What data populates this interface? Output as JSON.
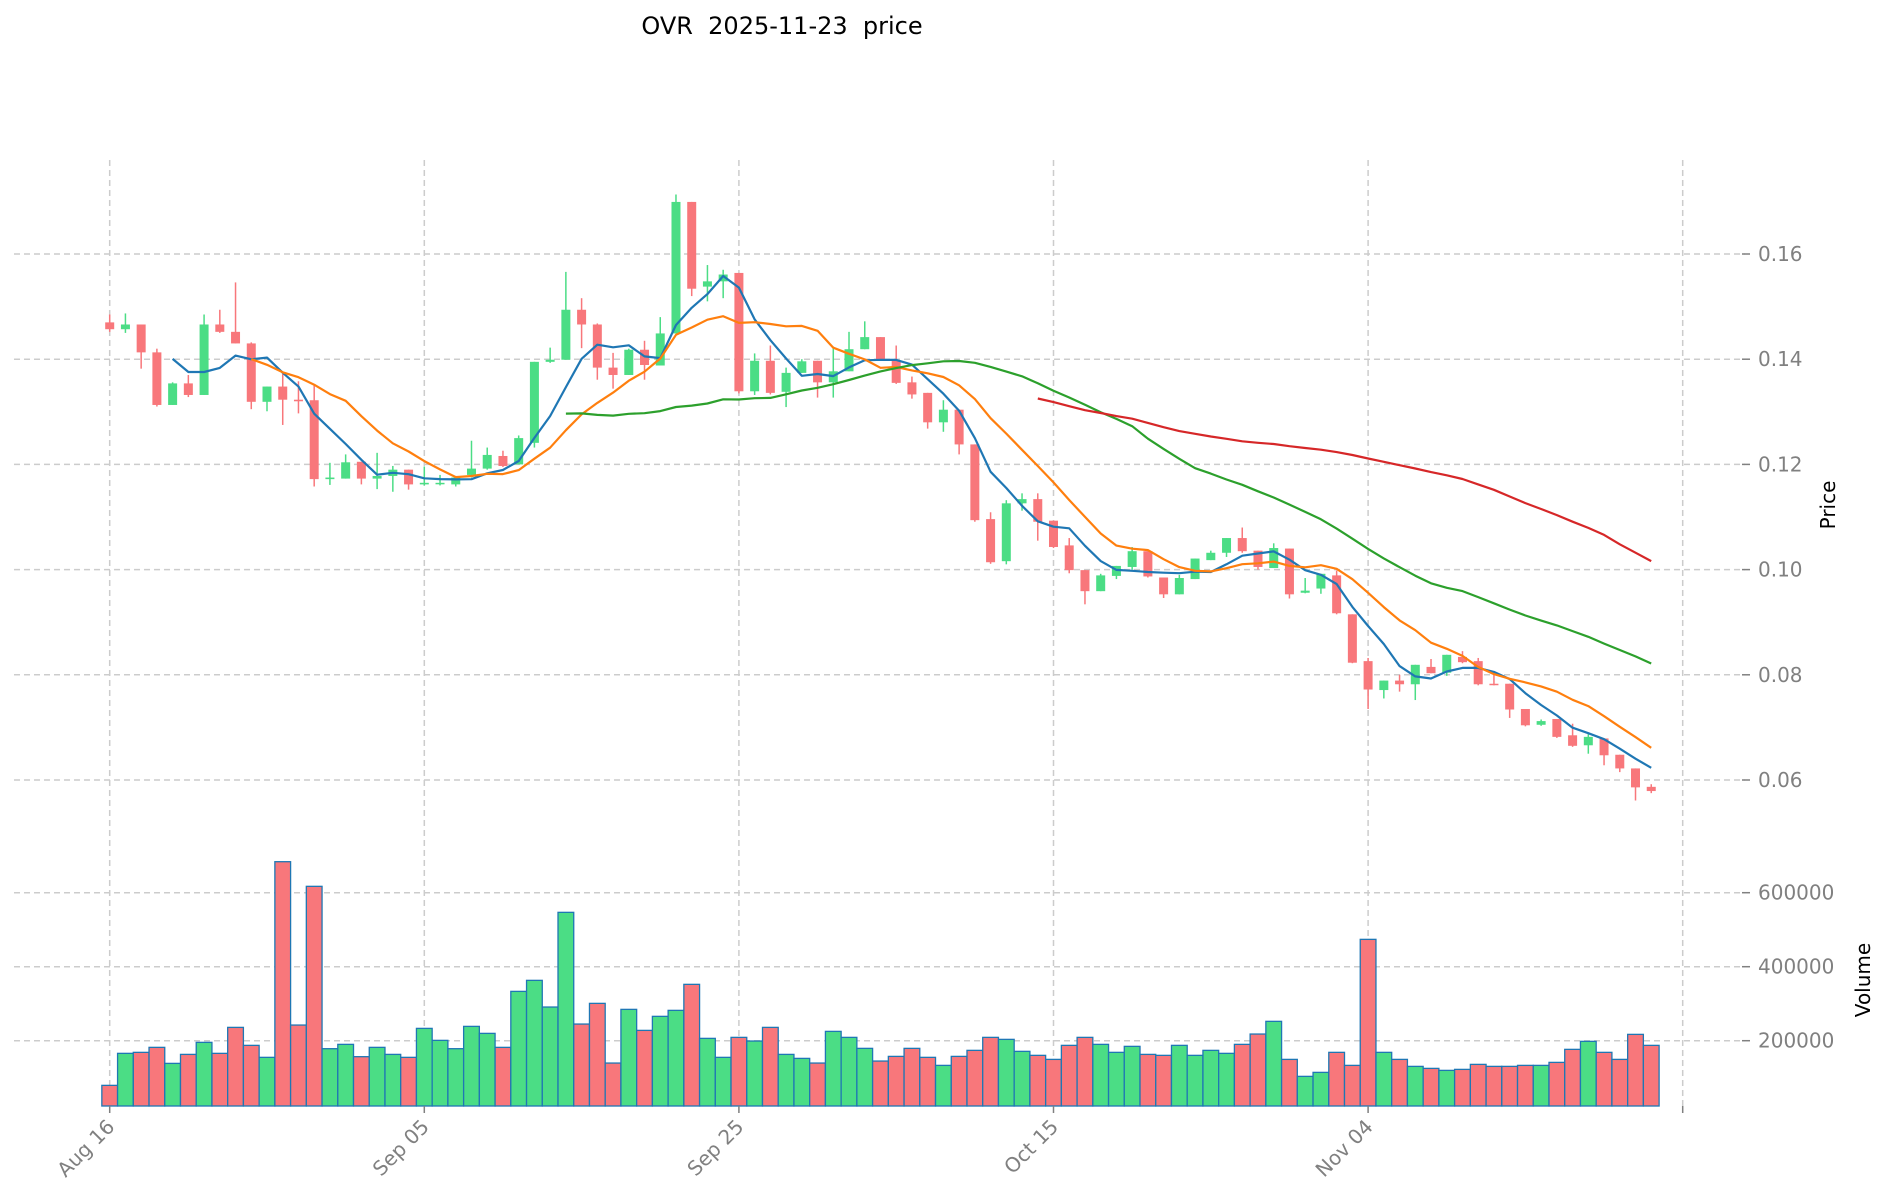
{
  "chart_data": {
    "type": "candlestick",
    "title": "OVR  2025-11-23  price",
    "symbol": "OVR",
    "x_start": "2025-08-16",
    "x_interval": "1D",
    "xlabel": "",
    "ylabel": "Price",
    "volume_label": "Volume",
    "ylim": [
      0.0476,
      0.1779
    ],
    "volume_ylim": [
      24300,
      688000
    ],
    "grid": true,
    "x_ticks": [
      {
        "day": 0,
        "label": "Aug 16"
      },
      {
        "day": 20,
        "label": "Sep 05"
      },
      {
        "day": 40,
        "label": "Sep 25"
      },
      {
        "day": 60,
        "label": "Oct 15"
      },
      {
        "day": 80,
        "label": "Nov 04"
      },
      {
        "day": 100,
        "label": ""
      }
    ],
    "y_ticks": [
      "0.06",
      "0.08",
      "0.10",
      "0.12",
      "0.14",
      "0.16"
    ],
    "volume_ticks": [
      "200000",
      "400000",
      "600000"
    ],
    "colors": {
      "up": "#4bdd85",
      "down": "#f8777b",
      "volume_edge": "#1f77b4",
      "grid": "#cccccc"
    },
    "moving_averages": [
      {
        "window": 5,
        "color": "#1f77b4"
      },
      {
        "window": 10,
        "color": "#ff7f0e"
      },
      {
        "window": 30,
        "color": "#2ca02c"
      },
      {
        "window": 60,
        "color": "#d62728"
      }
    ],
    "ohlc_columns": [
      "open",
      "high",
      "low",
      "close"
    ],
    "ohlc": [
      [
        0.147,
        0.1485,
        0.1452,
        0.1457
      ],
      [
        0.1457,
        0.1487,
        0.145,
        0.1466
      ],
      [
        0.1466,
        0.1466,
        0.1382,
        0.1413
      ],
      [
        0.1413,
        0.142,
        0.131,
        0.1313
      ],
      [
        0.1313,
        0.1356,
        0.1313,
        0.1354
      ],
      [
        0.1354,
        0.137,
        0.1328,
        0.1332
      ],
      [
        0.1332,
        0.1485,
        0.1332,
        0.1466
      ],
      [
        0.1466,
        0.1494,
        0.145,
        0.1452
      ],
      [
        0.1452,
        0.1546,
        0.143,
        0.143
      ],
      [
        0.143,
        0.1432,
        0.1305,
        0.1319
      ],
      [
        0.1319,
        0.1348,
        0.1301,
        0.1348
      ],
      [
        0.1348,
        0.1372,
        0.1275,
        0.1323
      ],
      [
        0.1323,
        0.1358,
        0.1297,
        0.132
      ],
      [
        0.1322,
        0.135,
        0.1158,
        0.1172
      ],
      [
        0.1172,
        0.1203,
        0.1161,
        0.1175
      ],
      [
        0.1173,
        0.1219,
        0.1173,
        0.1204
      ],
      [
        0.1205,
        0.1205,
        0.1162,
        0.1173
      ],
      [
        0.1173,
        0.1222,
        0.1153,
        0.1178
      ],
      [
        0.1178,
        0.1197,
        0.1148,
        0.119
      ],
      [
        0.119,
        0.119,
        0.1152,
        0.1162
      ],
      [
        0.1162,
        0.1196,
        0.116,
        0.1165
      ],
      [
        0.1163,
        0.118,
        0.116,
        0.1165
      ],
      [
        0.1162,
        0.1178,
        0.1158,
        0.1175
      ],
      [
        0.118,
        0.1245,
        0.1175,
        0.1192
      ],
      [
        0.1192,
        0.1232,
        0.119,
        0.1218
      ],
      [
        0.1216,
        0.1226,
        0.1195,
        0.1197
      ],
      [
        0.12,
        0.1255,
        0.12,
        0.125
      ],
      [
        0.1241,
        0.1395,
        0.1232,
        0.1395
      ],
      [
        0.1395,
        0.1422,
        0.1393,
        0.1399
      ],
      [
        0.1399,
        0.1566,
        0.1399,
        0.1494
      ],
      [
        0.1494,
        0.1516,
        0.1421,
        0.1466
      ],
      [
        0.1466,
        0.1468,
        0.1361,
        0.1384
      ],
      [
        0.1384,
        0.1412,
        0.1344,
        0.137
      ],
      [
        0.137,
        0.142,
        0.137,
        0.1418
      ],
      [
        0.1418,
        0.1435,
        0.1361,
        0.1389
      ],
      [
        0.1388,
        0.148,
        0.1388,
        0.1449
      ],
      [
        0.1449,
        0.1713,
        0.1449,
        0.1699
      ],
      [
        0.1699,
        0.1699,
        0.152,
        0.1534
      ],
      [
        0.1538,
        0.1579,
        0.151,
        0.1548
      ],
      [
        0.1548,
        0.157,
        0.1516,
        0.1561
      ],
      [
        0.1564,
        0.1564,
        0.1335,
        0.1339
      ],
      [
        0.1339,
        0.1411,
        0.1332,
        0.1397
      ],
      [
        0.1397,
        0.1426,
        0.1333,
        0.1336
      ],
      [
        0.1338,
        0.1384,
        0.1309,
        0.1374
      ],
      [
        0.1374,
        0.14,
        0.1374,
        0.1396
      ],
      [
        0.1397,
        0.1397,
        0.1327,
        0.1356
      ],
      [
        0.1356,
        0.1424,
        0.1327,
        0.1377
      ],
      [
        0.1377,
        0.1452,
        0.1377,
        0.1419
      ],
      [
        0.1419,
        0.1472,
        0.1419,
        0.1442
      ],
      [
        0.1442,
        0.1442,
        0.1398,
        0.14
      ],
      [
        0.1398,
        0.1426,
        0.1353,
        0.1355
      ],
      [
        0.1356,
        0.1367,
        0.1325,
        0.1333
      ],
      [
        0.1336,
        0.1336,
        0.1268,
        0.128
      ],
      [
        0.128,
        0.1322,
        0.1262,
        0.1304
      ],
      [
        0.1304,
        0.1304,
        0.1219,
        0.1238
      ],
      [
        0.1238,
        0.1238,
        0.1091,
        0.1094
      ],
      [
        0.1096,
        0.1109,
        0.1011,
        0.1014
      ],
      [
        0.1016,
        0.1132,
        0.101,
        0.1126
      ],
      [
        0.1126,
        0.1145,
        0.1112,
        0.1134
      ],
      [
        0.1134,
        0.1145,
        0.1055,
        0.1091
      ],
      [
        0.1093,
        0.1093,
        0.1041,
        0.1043
      ],
      [
        0.1046,
        0.106,
        0.0993,
        0.0999
      ],
      [
        0.0999,
        0.0999,
        0.0934,
        0.0959
      ],
      [
        0.0959,
        0.0992,
        0.0959,
        0.0989
      ],
      [
        0.0988,
        0.1007,
        0.0982,
        0.1007
      ],
      [
        0.1005,
        0.1043,
        0.1,
        0.1035
      ],
      [
        0.1035,
        0.1035,
        0.0985,
        0.0987
      ],
      [
        0.0985,
        0.0985,
        0.0946,
        0.0953
      ],
      [
        0.0953,
        0.099,
        0.0953,
        0.0984
      ],
      [
        0.0982,
        0.1021,
        0.0982,
        0.1021
      ],
      [
        0.1018,
        0.1036,
        0.1018,
        0.1032
      ],
      [
        0.1032,
        0.106,
        0.1024,
        0.106
      ],
      [
        0.106,
        0.108,
        0.1032,
        0.1035
      ],
      [
        0.1036,
        0.1036,
        0.1,
        0.1005
      ],
      [
        0.1003,
        0.105,
        0.1003,
        0.1041
      ],
      [
        0.104,
        0.104,
        0.0945,
        0.0953
      ],
      [
        0.0956,
        0.0984,
        0.0955,
        0.096
      ],
      [
        0.0964,
        0.0992,
        0.0954,
        0.0992
      ],
      [
        0.0989,
        0.0998,
        0.0915,
        0.0917
      ],
      [
        0.0915,
        0.0915,
        0.0822,
        0.0823
      ],
      [
        0.0826,
        0.0832,
        0.0735,
        0.0772
      ],
      [
        0.0771,
        0.0789,
        0.0755,
        0.0789
      ],
      [
        0.0789,
        0.08,
        0.0768,
        0.0782
      ],
      [
        0.0782,
        0.0819,
        0.0752,
        0.0819
      ],
      [
        0.0815,
        0.083,
        0.0803,
        0.0803
      ],
      [
        0.0804,
        0.0838,
        0.0798,
        0.0838
      ],
      [
        0.0834,
        0.0845,
        0.0822,
        0.0824
      ],
      [
        0.0826,
        0.0832,
        0.078,
        0.0782
      ],
      [
        0.0783,
        0.08,
        0.078,
        0.0781
      ],
      [
        0.0783,
        0.0783,
        0.0718,
        0.0734
      ],
      [
        0.0735,
        0.0735,
        0.0702,
        0.0704
      ],
      [
        0.0705,
        0.0715,
        0.0703,
        0.0712
      ],
      [
        0.0716,
        0.0716,
        0.068,
        0.0682
      ],
      [
        0.0685,
        0.0707,
        0.0663,
        0.0665
      ],
      [
        0.0666,
        0.069,
        0.065,
        0.0682
      ],
      [
        0.0679,
        0.0679,
        0.0628,
        0.0647
      ],
      [
        0.0648,
        0.0648,
        0.0615,
        0.0622
      ],
      [
        0.0622,
        0.0622,
        0.0561,
        0.0586
      ],
      [
        0.0587,
        0.0592,
        0.0575,
        0.0579
      ]
    ],
    "volume": [
      79300,
      165800,
      168500,
      182000,
      138700,
      163000,
      195500,
      165800,
      236000,
      187400,
      155000,
      683800,
      242300,
      617200,
      178400,
      190100,
      156800,
      182000,
      163000,
      155000,
      233300,
      200900,
      178400,
      238700,
      219800,
      182000,
      333300,
      363100,
      291000,
      546900,
      245000,
      300900,
      139600,
      284700,
      227900,
      265800,
      282000,
      352300,
      206300,
      155000,
      209000,
      199100,
      236000,
      163000,
      152200,
      139600,
      225200,
      209000,
      179300,
      145000,
      157600,
      179300,
      155000,
      133300,
      157600,
      173900,
      209000,
      203600,
      171200,
      160400,
      149500,
      187400,
      209000,
      190100,
      168500,
      184700,
      163000,
      160400,
      187400,
      160400,
      173900,
      165800,
      190100,
      218000,
      252300,
      149500,
      103600,
      114400,
      168500,
      133300,
      473900,
      168500,
      149500,
      130600,
      125200,
      119800,
      122500,
      136000,
      130600,
      130600,
      133300,
      133300,
      141400,
      176600,
      198200,
      168500,
      149500,
      217100,
      187400
    ]
  }
}
